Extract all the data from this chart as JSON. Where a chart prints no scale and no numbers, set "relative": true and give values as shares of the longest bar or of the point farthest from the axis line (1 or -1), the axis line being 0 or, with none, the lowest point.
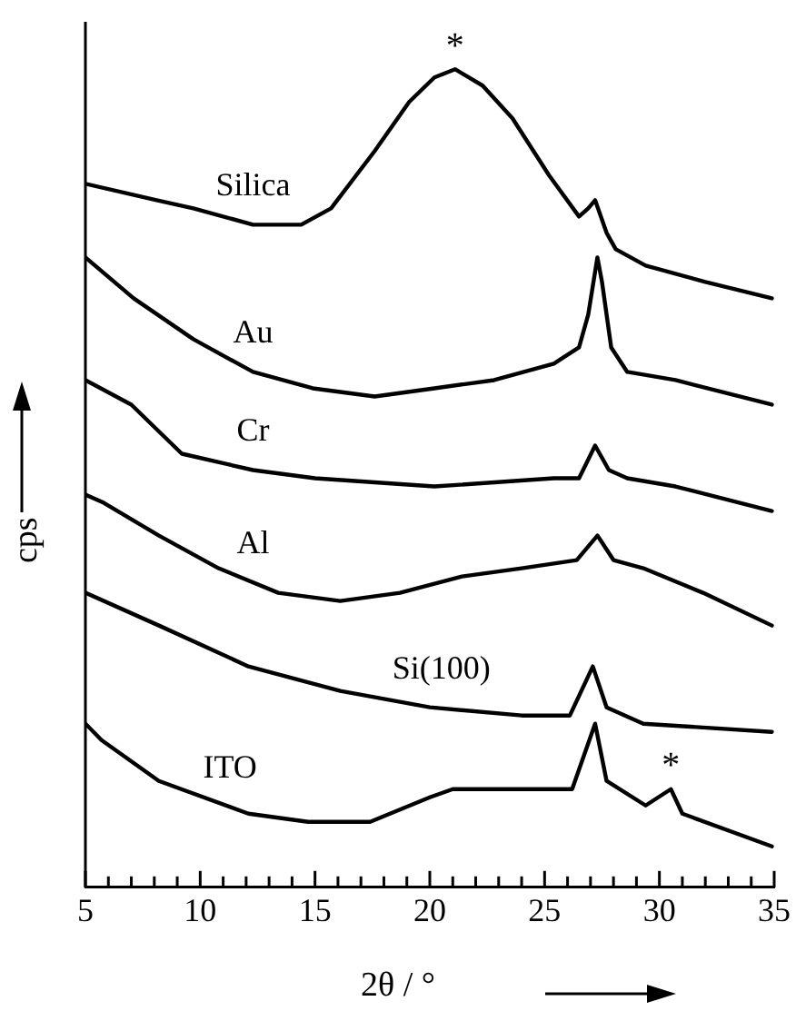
{
  "chart_data": {
    "type": "line",
    "relative": true,
    "xlabel": "2θ / °",
    "ylabel": "cps",
    "xlim": [
      5,
      35
    ],
    "xticks": [
      5,
      {
        "value": 6,
        "label": null
      },
      {
        "value": 7,
        "label": null
      },
      {
        "value": 8,
        "label": null
      },
      {
        "value": 9,
        "label": null
      },
      10,
      {
        "value": 11,
        "label": null
      },
      {
        "value": 12,
        "label": null
      },
      {
        "value": 13,
        "label": null
      },
      {
        "value": 14,
        "label": null
      },
      15,
      {
        "value": 16,
        "label": null
      },
      {
        "value": 17,
        "label": null
      },
      {
        "value": 18,
        "label": null
      },
      {
        "value": 19,
        "label": null
      },
      20,
      {
        "value": 21,
        "label": null
      },
      {
        "value": 22,
        "label": null
      },
      {
        "value": 23,
        "label": null
      },
      {
        "value": 24,
        "label": null
      },
      25,
      {
        "value": 26,
        "label": null
      },
      {
        "value": 27,
        "label": null
      },
      {
        "value": 28,
        "label": null
      },
      {
        "value": 29,
        "label": null
      },
      30,
      {
        "value": 31,
        "label": null
      },
      {
        "value": 32,
        "label": null
      },
      {
        "value": 33,
        "label": null
      },
      {
        "value": 34,
        "label": null
      },
      35
    ],
    "grid": false,
    "legend": false,
    "marker": "none",
    "line_style": "solid",
    "series": [
      {
        "name": "Silica",
        "color": "#000000",
        "x": [
          5,
          8.1,
          9.7,
          12.3,
          14.4,
          15.7,
          17.6,
          19.1,
          20.2,
          21.1,
          22.3,
          23.6,
          25.2,
          26.5,
          26.9,
          27.2,
          27.7,
          28.1,
          29.4,
          32,
          34.9
        ],
        "values": [
          0.86,
          0.84,
          0.83,
          0.81,
          0.81,
          0.83,
          0.9,
          0.96,
          0.99,
          1,
          0.98,
          0.94,
          0.87,
          0.82,
          0.83,
          0.84,
          0.8,
          0.78,
          0.76,
          0.74,
          0.72
        ]
      },
      {
        "name": "Au",
        "color": "#000000",
        "x": [
          5,
          7.1,
          9.7,
          12.3,
          14.9,
          17.6,
          20.2,
          22.8,
          25.4,
          26.5,
          26.9,
          27.3,
          27.5,
          27.9,
          28.6,
          30.7,
          34.9
        ],
        "values": [
          0.77,
          0.72,
          0.67,
          0.63,
          0.61,
          0.6,
          0.61,
          0.62,
          0.64,
          0.66,
          0.7,
          0.77,
          0.74,
          0.66,
          0.63,
          0.62,
          0.59
        ]
      },
      {
        "name": "Cr",
        "color": "#000000",
        "x": [
          5,
          7,
          9.2,
          12.3,
          15,
          20.2,
          25.4,
          26.5,
          27.2,
          27.8,
          28.6,
          30.7,
          34.9
        ],
        "values": [
          0.62,
          0.59,
          0.53,
          0.51,
          0.5,
          0.49,
          0.5,
          0.5,
          0.54,
          0.51,
          0.5,
          0.49,
          0.46
        ]
      },
      {
        "name": "Al",
        "color": "#000000",
        "x": [
          5,
          5.8,
          8.2,
          10.8,
          13.4,
          16.1,
          18.7,
          21.4,
          24,
          26.4,
          27.3,
          28,
          29.3,
          31.9,
          34.9
        ],
        "values": [
          0.48,
          0.47,
          0.43,
          0.39,
          0.36,
          0.35,
          0.36,
          0.38,
          0.39,
          0.4,
          0.43,
          0.4,
          0.39,
          0.36,
          0.32
        ]
      },
      {
        "name": "Si(100)",
        "color": "#000000",
        "x": [
          5,
          8.2,
          12.1,
          16.1,
          20,
          24,
          26.1,
          27.1,
          27.7,
          29.3,
          34.9
        ],
        "values": [
          0.36,
          0.32,
          0.27,
          0.24,
          0.22,
          0.21,
          0.21,
          0.27,
          0.22,
          0.2,
          0.19
        ]
      },
      {
        "name": "ITO",
        "color": "#000000",
        "x": [
          5,
          5.7,
          8.2,
          12.1,
          14.7,
          17.4,
          20,
          21,
          23.9,
          26.2,
          27.2,
          27.7,
          29.4,
          30.5,
          31,
          34.9
        ],
        "values": [
          0.2,
          0.18,
          0.13,
          0.09,
          0.08,
          0.08,
          0.11,
          0.12,
          0.12,
          0.12,
          0.2,
          0.13,
          0.1,
          0.12,
          0.09,
          0.05
        ]
      }
    ],
    "annotations": [
      {
        "text": "*",
        "x": 21.1,
        "y": 1
      },
      {
        "text": "*",
        "x": 30.5,
        "y": 0.12
      }
    ]
  }
}
